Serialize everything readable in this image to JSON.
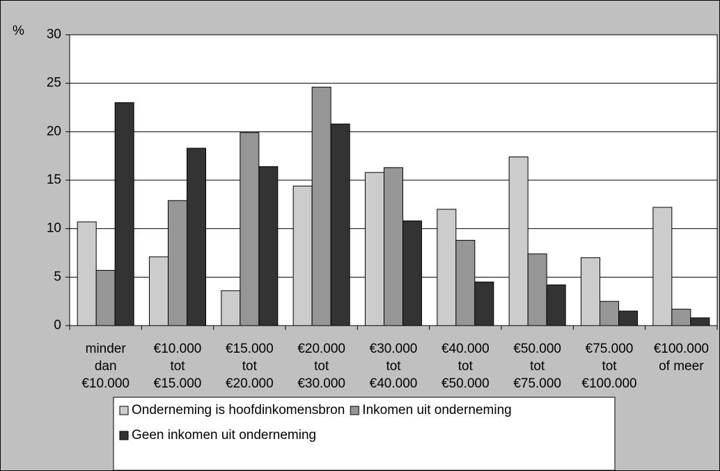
{
  "chart_data": {
    "type": "bar",
    "y_label": "%",
    "categories": [
      [
        "minder",
        "dan",
        "€10.000"
      ],
      [
        "€10.000",
        "tot",
        "€15.000"
      ],
      [
        "€15.000",
        "tot",
        "€20.000"
      ],
      [
        "€20.000",
        "tot",
        "€30.000"
      ],
      [
        "€30.000",
        "tot",
        "€40.000"
      ],
      [
        "€40.000",
        "tot",
        "€50.000"
      ],
      [
        "€50.000",
        "tot",
        "€75.000"
      ],
      [
        "€75.000",
        "tot",
        "€100.000"
      ],
      [
        "€100.000",
        "of meer"
      ]
    ],
    "series": [
      {
        "name": "Onderneming is hoofdinkomensbron",
        "color": "#cccccc",
        "values": [
          10.7,
          7.1,
          3.6,
          14.4,
          15.8,
          12.0,
          17.4,
          7.0,
          12.2
        ]
      },
      {
        "name": "Inkomen uit onderneming",
        "color": "#969696",
        "values": [
          5.7,
          12.9,
          19.9,
          24.6,
          16.3,
          8.8,
          7.4,
          2.5,
          1.7
        ]
      },
      {
        "name": "Geen inkomen uit onderneming",
        "color": "#333333",
        "values": [
          23.0,
          18.3,
          16.4,
          20.8,
          10.8,
          4.5,
          4.2,
          1.5,
          0.8
        ]
      }
    ],
    "ylim": [
      0,
      30
    ],
    "yticks": [
      0,
      5,
      10,
      15,
      20,
      25,
      30
    ],
    "grid": true,
    "legend": "bottom"
  }
}
